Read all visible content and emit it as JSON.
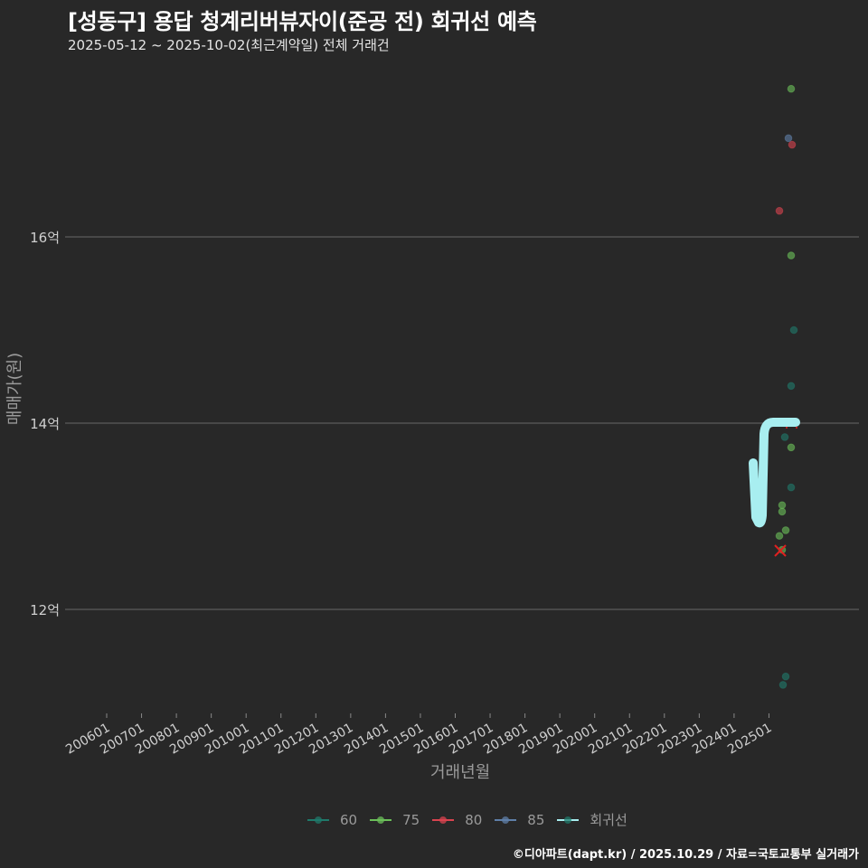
{
  "title": "[성동구] 용답 청계리버뷰자이(준공 전) 회귀선 예측",
  "subtitle": "2025-05-12 ~ 2025-10-02(최근계약일) 전체 거래건",
  "caption": "©디아파트(dapt.kr) / 2025.10.29 / 자료=국토교통부 실거래가",
  "colors": {
    "background": "#282828",
    "grid": "#5c5c5c",
    "s60": "#1f7a6b",
    "s75": "#6bbf59",
    "s80": "#d9434f",
    "s85": "#5f7fa8",
    "regression": "#a8eef0"
  },
  "chart_data": {
    "type": "scatter",
    "title": "[성동구] 용답 청계리버뷰자이(준공 전) 회귀선 예측",
    "subtitle": "2025-05-12 ~ 2025-10-02(최근계약일) 전체 거래건",
    "xlabel": "거래년월",
    "ylabel": "매매가(원)",
    "x_ticks": [
      "200601",
      "200701",
      "200801",
      "200901",
      "201001",
      "201101",
      "201201",
      "201301",
      "201401",
      "201501",
      "201601",
      "201701",
      "201801",
      "201901",
      "202001",
      "202101",
      "202201",
      "202301",
      "202401",
      "202501"
    ],
    "y_ticks": [
      "12억",
      "14억",
      "16억"
    ],
    "y_tick_values": [
      12,
      14,
      16
    ],
    "ylim": [
      10.9,
      17.9
    ],
    "y_unit": "억",
    "grid": "horizontal",
    "legend_position": "bottom",
    "legend": [
      "60",
      "75",
      "80",
      "85",
      "회귀선"
    ],
    "series": [
      {
        "name": "60",
        "points": [
          {
            "x": "2025-09",
            "y": 15.0
          },
          {
            "x": "2025-08",
            "y": 14.4
          },
          {
            "x": "2025-07",
            "y": 13.85
          },
          {
            "x": "2025-08",
            "y": 13.31
          },
          {
            "x": "2025-07",
            "y": 11.28
          },
          {
            "x": "2025-06",
            "y": 11.19
          }
        ]
      },
      {
        "name": "75",
        "points": [
          {
            "x": "2025-08",
            "y": 17.59
          },
          {
            "x": "2025-08",
            "y": 15.8
          },
          {
            "x": "2025-08",
            "y": 13.74
          },
          {
            "x": "2025-06",
            "y": 13.12
          },
          {
            "x": "2025-06",
            "y": 13.05
          },
          {
            "x": "2025-07",
            "y": 12.85
          },
          {
            "x": "2025-05",
            "y": 12.79
          },
          {
            "x": "2025-06",
            "y": 12.64
          }
        ]
      },
      {
        "name": "80",
        "points": [
          {
            "x": "2025-08",
            "y": 16.99
          },
          {
            "x": "2025-05",
            "y": 16.28
          }
        ]
      },
      {
        "name": "85",
        "points": [
          {
            "x": "2025-08",
            "y": 17.06
          }
        ]
      },
      {
        "name": "회귀선",
        "type": "line",
        "points": [
          {
            "x": "2024-08",
            "y": 13.56
          },
          {
            "x": "2024-10",
            "y": 12.93
          },
          {
            "x": "2024-12",
            "y": 13.95
          },
          {
            "x": "2025-01",
            "y": 14.02
          },
          {
            "x": "2025-10",
            "y": 14.02
          }
        ]
      }
    ],
    "annotations": [
      {
        "type": "x-marker",
        "color": "red",
        "x": "2025-06",
        "y": 12.62
      }
    ]
  }
}
